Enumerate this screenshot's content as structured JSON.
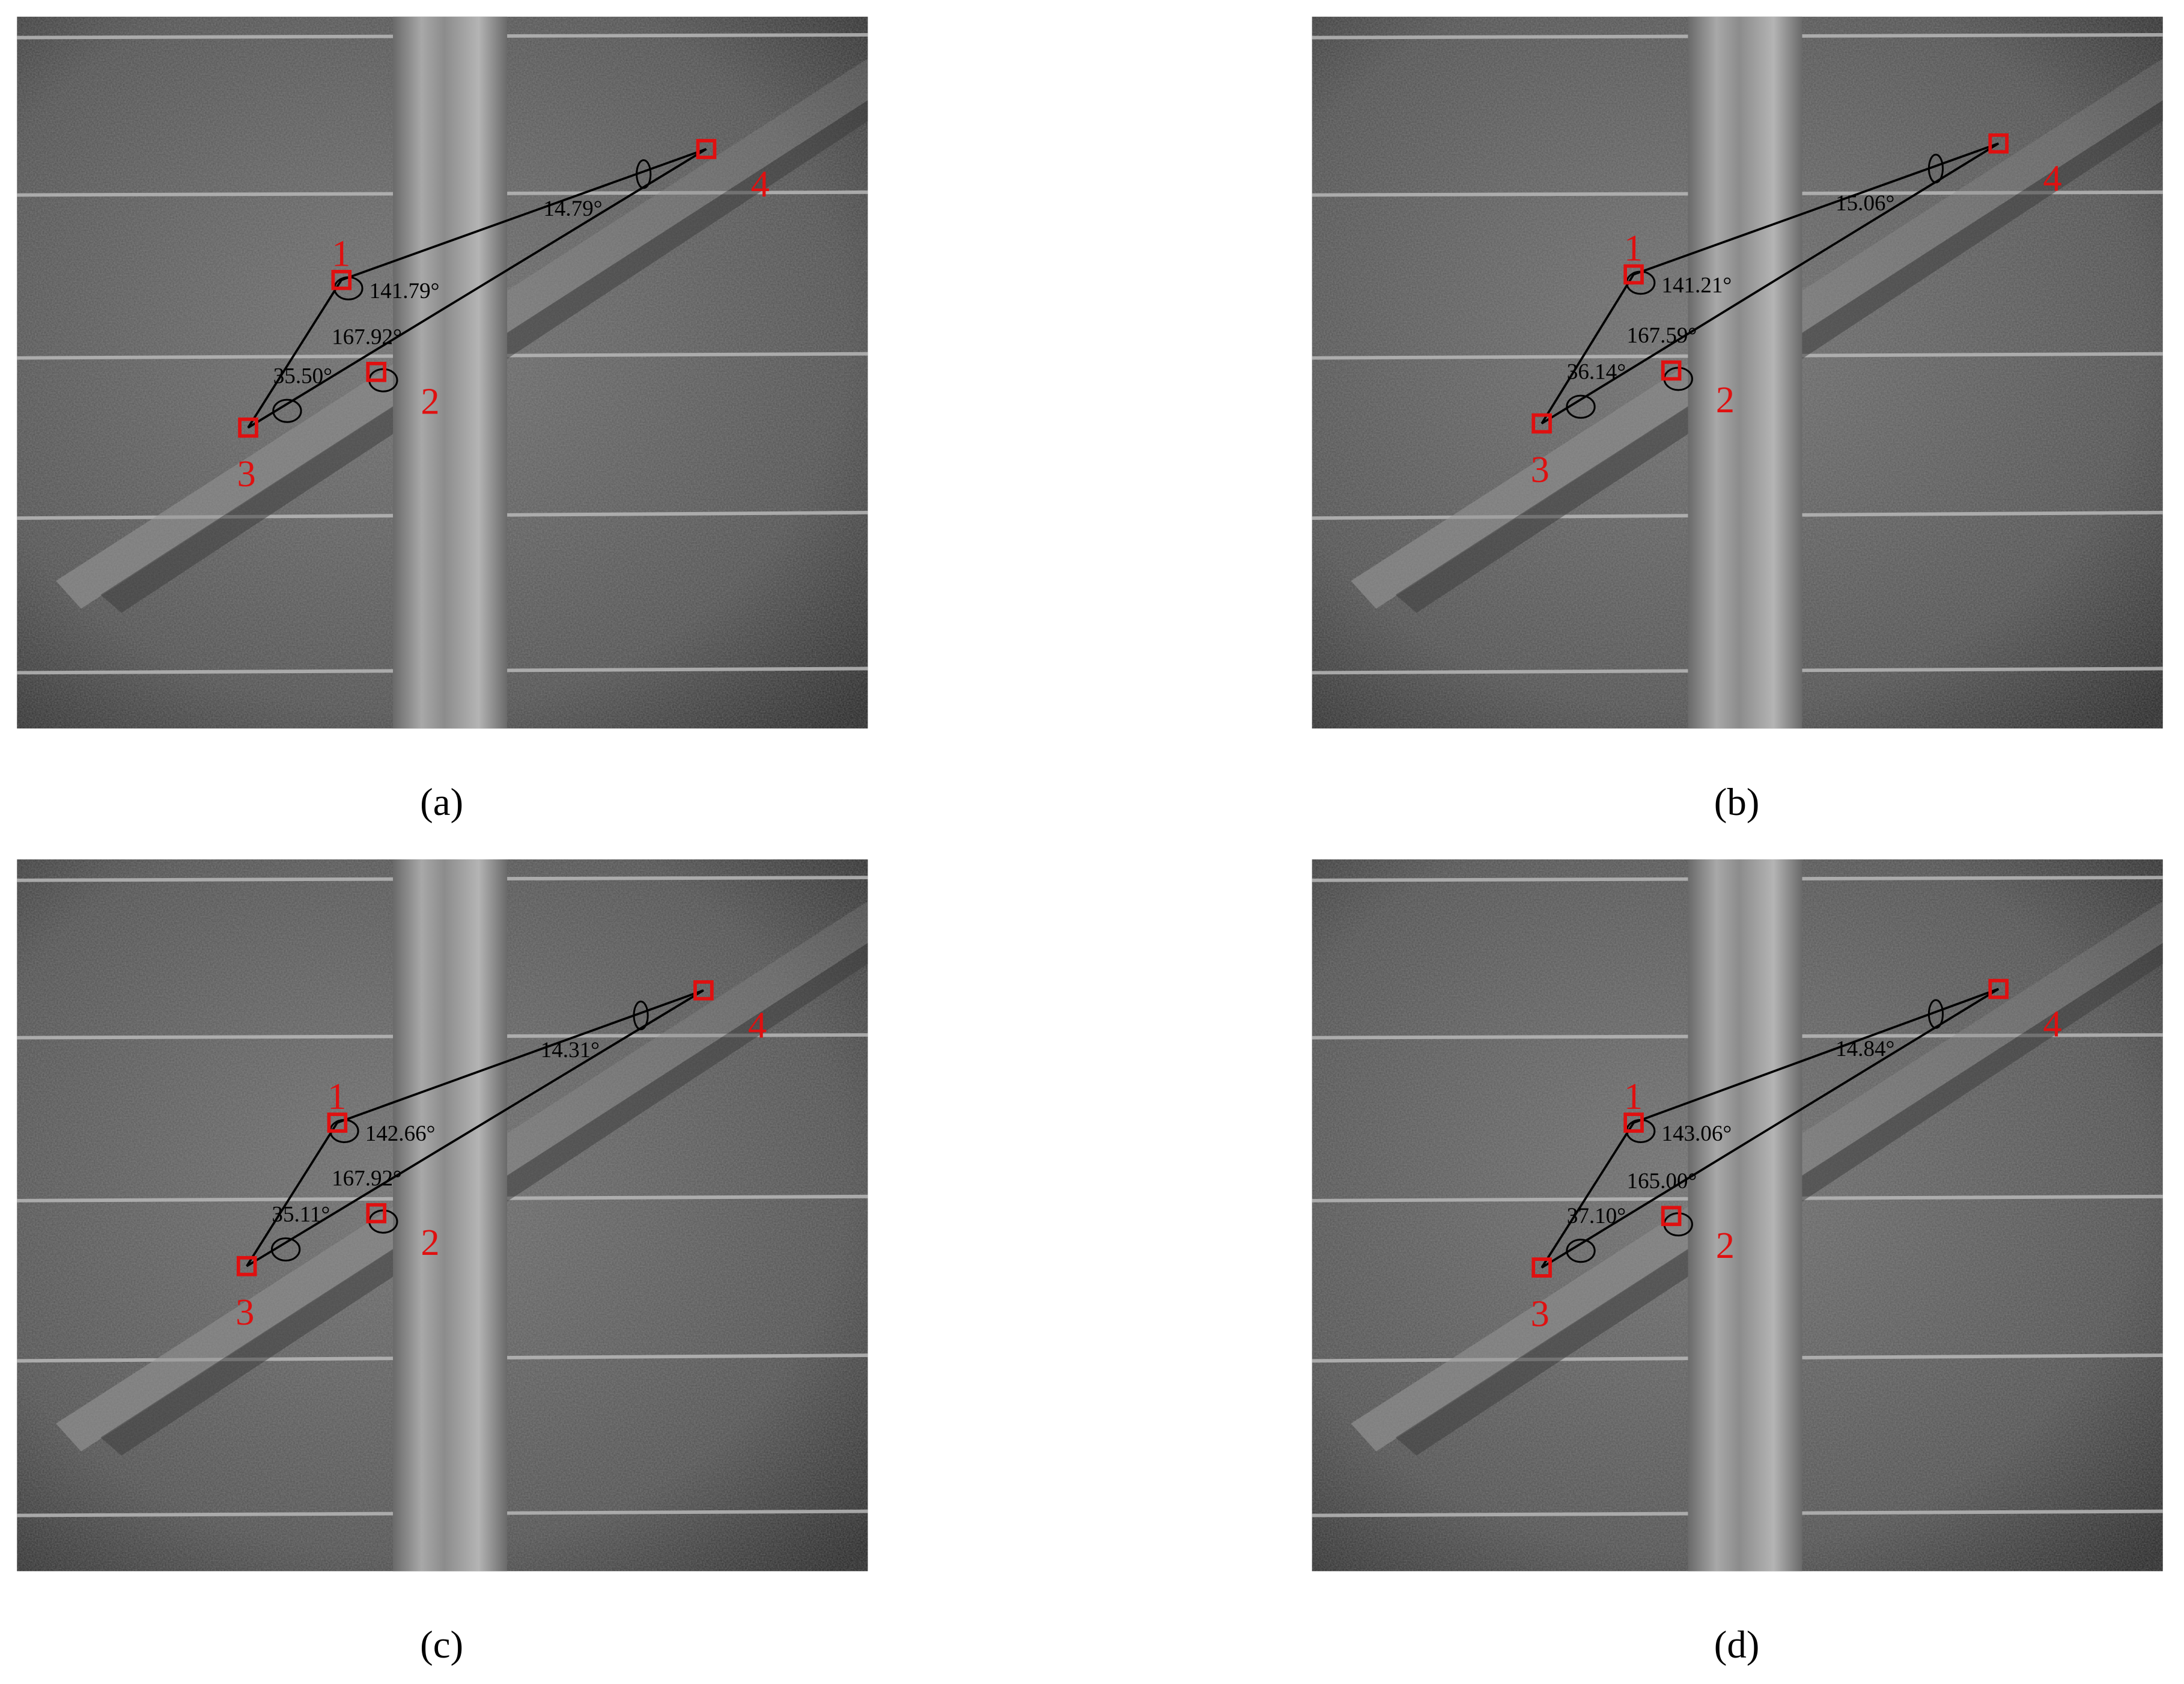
{
  "panels": [
    {
      "caption": "(a)",
      "points": [
        {
          "label": "1",
          "angle": "141.79°"
        },
        {
          "label": "2",
          "angle": "167.92°"
        },
        {
          "label": "3",
          "angle": "35.50°"
        },
        {
          "label": "4",
          "angle": "14.79°"
        }
      ]
    },
    {
      "caption": "(b)",
      "points": [
        {
          "label": "1",
          "angle": "141.21°"
        },
        {
          "label": "2",
          "angle": "167.59°"
        },
        {
          "label": "3",
          "angle": "36.14°"
        },
        {
          "label": "4",
          "angle": "15.06°"
        }
      ]
    },
    {
      "caption": "(c)",
      "points": [
        {
          "label": "1",
          "angle": "142.66°"
        },
        {
          "label": "2",
          "angle": "167.92°"
        },
        {
          "label": "3",
          "angle": "35.11°"
        },
        {
          "label": "4",
          "angle": "14.31°"
        }
      ]
    },
    {
      "caption": "(d)",
      "points": [
        {
          "label": "1",
          "angle": "143.06°"
        },
        {
          "label": "2",
          "angle": "165.00°"
        },
        {
          "label": "3",
          "angle": "37.10°"
        },
        {
          "label": "4",
          "angle": "14.84°"
        }
      ]
    }
  ]
}
